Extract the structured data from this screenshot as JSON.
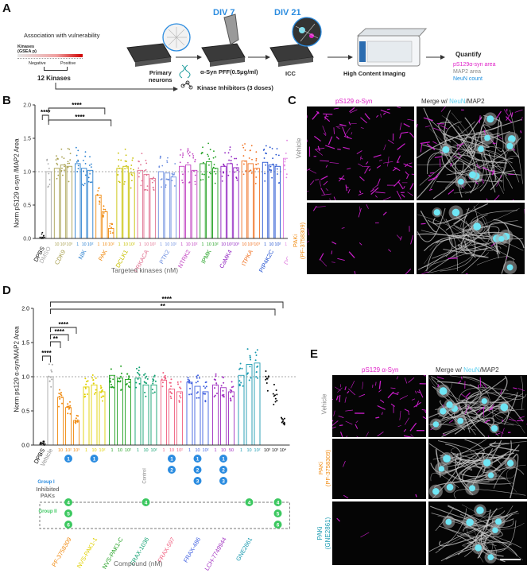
{
  "panels": {
    "A": "A",
    "B": "B",
    "C": "C",
    "D": "D",
    "E": "E"
  },
  "panelA": {
    "assoc_title": "Association with vulnerability",
    "kinases_label": "Kinases",
    "gsea_label": "(GSEA p)",
    "negative": "Negative",
    "positive": "Positive",
    "twelve_kinases": "12 Kinases",
    "primary_neurons": "Primary\nneurons",
    "div7": "DIV 7",
    "div21": "DIV 21",
    "pff": "α-Syn PFF(0.5μg/ml)",
    "inhibitors": "Kinase Inhibitors (3 doses)",
    "icc": "ICC",
    "hci": "High Content Imaging",
    "quantify": "Quantify",
    "q1": "pS129α-syn area",
    "q2": "MAP2 area",
    "q3": "NeuN count",
    "colors": {
      "q1": "#e020c8",
      "q2": "#888888",
      "q3": "#1a8ee0"
    }
  },
  "panelB": {
    "ylabel": "Norm pS129 α-syn /MAP2 Area",
    "xlabel": "Targeted kinases (nM)",
    "sig": [
      "****",
      "****",
      "****"
    ],
    "yticks": [
      "0.0",
      "0.5",
      "1.0",
      "1.5",
      "2.0"
    ],
    "dose_labels": [
      "10",
      "10²",
      "10³",
      "1",
      "10",
      "10²",
      "1",
      "10",
      "10²",
      "1",
      "10",
      "10²",
      "1",
      "10",
      "10²",
      "1",
      "10",
      "10²",
      "1",
      "10",
      "10²",
      "1",
      "10",
      "10²",
      "10",
      "10²",
      "10³",
      "10",
      "10²",
      "10³",
      "1",
      "10",
      "10²",
      "1",
      "10",
      "10²"
    ],
    "kinases": [
      {
        "name": "DPBS",
        "color": "#111111"
      },
      {
        "name": "DMSO",
        "color": "#aaaaaa"
      },
      {
        "name": "CDK9",
        "color": "#a8a050"
      },
      {
        "name": "NIK",
        "color": "#2a80d0"
      },
      {
        "name": "PAK",
        "color": "#f08a10"
      },
      {
        "name": "DCLK1",
        "color": "#c8c000"
      },
      {
        "name": "PRKACA",
        "color": "#e07090"
      },
      {
        "name": "PTK2",
        "color": "#7090e0"
      },
      {
        "name": "NTRK2",
        "color": "#c040c0"
      },
      {
        "name": "IPMK",
        "color": "#20a020"
      },
      {
        "name": "CaMK4",
        "color": "#9020c0"
      },
      {
        "name": "ITPKA",
        "color": "#f07020"
      },
      {
        "name": "PIP4K2C",
        "color": "#2050d0"
      },
      {
        "name": "DGKz",
        "color": "#e080e0"
      }
    ]
  },
  "panelC": {
    "col1": "pS129 α-Syn",
    "col2_prefix": "Merge w/ ",
    "col2_neun": "NeuN",
    "col2_suffix": "/MAP2",
    "row1": "Vehicle",
    "row2a": "PAKi",
    "row2b": "(PF-3758309)"
  },
  "panelD": {
    "ylabel": "Norm ps129 α-syn/MAP2 Area",
    "xlabel": "Compound (nM)",
    "sig": [
      "****",
      "**",
      "****",
      "****",
      "**",
      "****"
    ],
    "yticks": [
      "0.0",
      "0.5",
      "1.0",
      "1.5",
      "2.0"
    ],
    "dose_labels": [
      "10",
      "10²",
      "10³",
      "1",
      "10",
      "10²",
      "1",
      "10",
      "10²",
      "1",
      "10",
      "10²",
      "1",
      "10",
      "10²",
      "1",
      "10",
      "10²",
      "1",
      "10",
      "50",
      "1",
      "10",
      "10²",
      "10³",
      "10³",
      "10⁴"
    ],
    "dpbs": "DPBS",
    "vehicle": "Vehicle",
    "control": "Control",
    "group1": "Group I",
    "inhibited": "Inhibited",
    "paks": "PAKs",
    "group2": "Group II",
    "compounds": [
      {
        "name": "PF-3758309",
        "color": "#f08a10"
      },
      {
        "name": "NVS-PAK1-1",
        "color": "#e0d000"
      },
      {
        "name": "NVS-PAK1-C",
        "color": "#20a020"
      },
      {
        "name": "FRAX-1036",
        "color": "#10a070"
      },
      {
        "name": "FRAX-597",
        "color": "#f06080"
      },
      {
        "name": "FRAX-486",
        "color": "#4060e0"
      },
      {
        "name": "LCH-7749944",
        "color": "#a030c0"
      },
      {
        "name": "GNE2861",
        "color": "#1a9ab0"
      }
    ],
    "circle_colors": {
      "group1": "#2b8ce0",
      "group2": "#3cc860"
    }
  },
  "panelE": {
    "col1": "pS129 α-Syn",
    "col2_prefix": "Merge w/ ",
    "col2_neun": "NeuN",
    "col2_suffix": "/MAP2",
    "row1": "Vehicle",
    "row2a": "PAKi",
    "row2b": "(PF-3758309)",
    "row3a": "PAKi",
    "row3b": "(GNE2861)"
  }
}
